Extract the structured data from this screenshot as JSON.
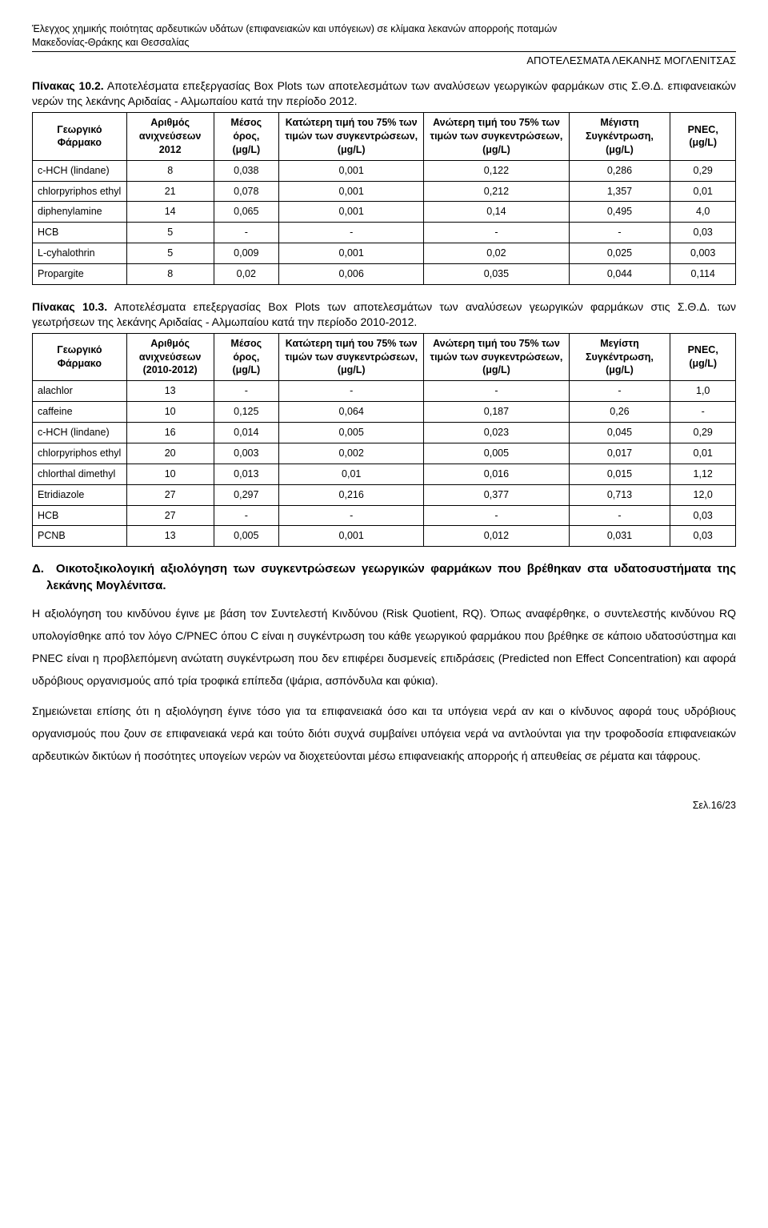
{
  "header": {
    "line1": "Έλεγχος χημικής ποιότητας αρδευτικών υδάτων (επιφανειακών και υπόγειων) σε κλίμακα λεκανών απορροής ποταμών",
    "line2": "Μακεδονίας-Θράκης και Θεσσαλίας",
    "subright": "ΑΠΟΤΕΛΕΣΜΑΤΑ ΛΕΚΑΝΗΣ ΜΟΓΛΕΝΙΤΣΑΣ"
  },
  "captions": {
    "t102_label": "Πίνακας 10.2.",
    "t102_body": "Αποτελέσματα επεξεργασίας Box Plots των αποτελεσμάτων των αναλύσεων γεωργικών φαρμάκων στις Σ.Θ.Δ. επιφανειακών νερών της λεκάνης Αριδαίας - Αλμωπαίου κατά την περίοδο 2012.",
    "t103_label": "Πίνακας 10.3.",
    "t103_body": "Αποτελέσματα επεξεργασίας Box Plots των αποτελεσμάτων των αναλύσεων γεωργικών φαρμάκων στις Σ.Θ.Δ. των γεωτρήσεων της λεκάνης Αριδαίας - Αλμωπαίου κατά την περίοδο 2010-2012."
  },
  "tbl102": {
    "headers": {
      "c1": "Γεωργικό Φάρμακο",
      "c2a": "Αριθμός ανιχνεύσεων",
      "c2b": "2012",
      "c3a": "Μέσος όρος,",
      "c3b": "(μg/L)",
      "c4a": "Κατώτερη τιμή του 75% των τιμών των συγκεντρώσεων,",
      "c4b": "(μg/L)",
      "c5a": "Ανώτερη τιμή του 75% των τιμών των συγκεντρώσεων,",
      "c5b": "(μg/L)",
      "c6a": "Μέγιστη Συγκέντρωση,",
      "c6b": "(μg/L)",
      "c7a": "PNEC,",
      "c7b": "(μg/L)"
    },
    "rows": [
      {
        "name": "c-HCH (lindane)",
        "n": "8",
        "mean": "0,038",
        "low": "0,001",
        "high": "0,122",
        "max": "0,286",
        "pnec": "0,29"
      },
      {
        "name": "chlorpyriphos ethyl",
        "n": "21",
        "mean": "0,078",
        "low": "0,001",
        "high": "0,212",
        "max": "1,357",
        "pnec": "0,01"
      },
      {
        "name": "diphenylamine",
        "n": "14",
        "mean": "0,065",
        "low": "0,001",
        "high": "0,14",
        "max": "0,495",
        "pnec": "4,0"
      },
      {
        "name": "HCB",
        "n": "5",
        "mean": "-",
        "low": "-",
        "high": "-",
        "max": "-",
        "pnec": "0,03"
      },
      {
        "name": "L-cyhalothrin",
        "n": "5",
        "mean": "0,009",
        "low": "0,001",
        "high": "0,02",
        "max": "0,025",
        "pnec": "0,003"
      },
      {
        "name": "Propargite",
        "n": "8",
        "mean": "0,02",
        "low": "0,006",
        "high": "0,035",
        "max": "0,044",
        "pnec": "0,114"
      }
    ]
  },
  "tbl103": {
    "headers": {
      "c1": "Γεωργικό Φάρμακο",
      "c2a": "Αριθμός ανιχνεύσεων",
      "c2b": "(2010-2012)",
      "c3a": "Μέσος όρος,",
      "c3b": "(μg/L)",
      "c4a": "Κατώτερη τιμή του 75% των τιμών των συγκεντρώσεων,",
      "c4b": "(μg/L)",
      "c5a": "Ανώτερη τιμή του 75% των τιμών των συγκεντρώσεων,",
      "c5b": "(μg/L)",
      "c6a": "Μεγίστη Συγκέντρωση,",
      "c6b": "(μg/L)",
      "c7a": "PNEC,",
      "c7b": "(μg/L)"
    },
    "rows": [
      {
        "name": "alachlor",
        "n": "13",
        "mean": "-",
        "low": "-",
        "high": "-",
        "max": "-",
        "pnec": "1,0"
      },
      {
        "name": "caffeine",
        "n": "10",
        "mean": "0,125",
        "low": "0,064",
        "high": "0,187",
        "max": "0,26",
        "pnec": "-"
      },
      {
        "name": "c-HCH (lindane)",
        "n": "16",
        "mean": "0,014",
        "low": "0,005",
        "high": "0,023",
        "max": "0,045",
        "pnec": "0,29"
      },
      {
        "name": "chlorpyriphos ethyl",
        "n": "20",
        "mean": "0,003",
        "low": "0,002",
        "high": "0,005",
        "max": "0,017",
        "pnec": "0,01"
      },
      {
        "name": "chlorthal dimethyl",
        "n": "10",
        "mean": "0,013",
        "low": "0,01",
        "high": "0,016",
        "max": "0,015",
        "pnec": "1,12"
      },
      {
        "name": "Etridiazole",
        "n": "27",
        "mean": "0,297",
        "low": "0,216",
        "high": "0,377",
        "max": "0,713",
        "pnec": "12,0"
      },
      {
        "name": "HCB",
        "n": "27",
        "mean": "-",
        "low": "-",
        "high": "-",
        "max": "-",
        "pnec": "0,03"
      },
      {
        "name": "PCNB",
        "n": "13",
        "mean": "0,005",
        "low": "0,001",
        "high": "0,012",
        "max": "0,031",
        "pnec": "0,03"
      }
    ]
  },
  "section": {
    "heading": "Δ.  Οικοτοξικολογική αξιολόγηση των συγκεντρώσεων γεωργικών φαρμάκων που βρέθηκαν στα υδατοσυστήματα της λεκάνης Μογλένιτσα.",
    "p1": "Η αξιολόγηση του κινδύνου έγινε με βάση τον Συντελεστή Κινδύνου (Risk Quotient, RQ). Όπως αναφέρθηκε, ο συντελεστής κινδύνου RQ υπολογίσθηκε από τον λόγο C/PNEC όπου C είναι η συγκέντρωση του κάθε γεωργικού φαρμάκου που βρέθηκε σε κάποιο υδατοσύστημα και PNEC είναι η προβλεπόμενη ανώτατη συγκέντρωση που δεν επιφέρει δυσμενείς επιδράσεις (Predicted non Effect Concentration) και αφορά υδρόβιους οργανισμούς από τρία τροφικά επίπεδα (ψάρια, ασπόνδυλα και φύκια).",
    "p2": "Σημειώνεται επίσης ότι η αξιολόγηση έγινε τόσο για τα επιφανειακά όσο και τα υπόγεια νερά αν και ο κίνδυνος αφορά τους υδρόβιους οργανισμούς που ζουν σε επιφανειακά νερά και τούτο διότι συχνά συμβαίνει υπόγεια νερά να αντλούνται για την τροφοδοσία επιφανειακών αρδευτικών δικτύων ή ποσότητες υπογείων νερών να διοχετεύονται μέσω επιφανειακής απορροής ή απευθείας σε ρέματα και τάφρους."
  },
  "footer": {
    "page": "Σελ.16/23"
  }
}
